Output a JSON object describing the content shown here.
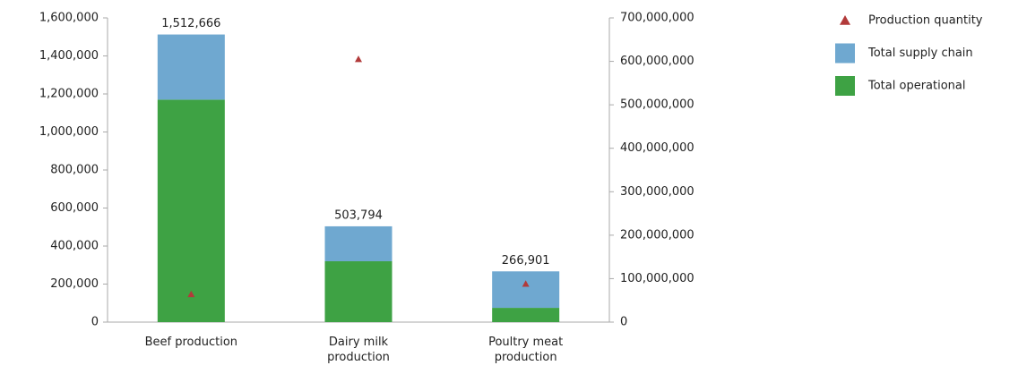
{
  "chart_data": {
    "type": "bar",
    "categories": [
      "Beef production",
      "Dairy milk production",
      "Poultry meat production"
    ],
    "series": [
      {
        "name": "Production quantity",
        "type": "scatter",
        "axis": "y2",
        "color": "#b23a3a",
        "values": [
          64000000,
          605000000,
          88000000
        ]
      },
      {
        "name": "Total supply chain",
        "color": "#6fa8d0",
        "values": [
          342666,
          183794,
          191901
        ]
      },
      {
        "name": "Total operational",
        "color": "#3ea244",
        "values": [
          1170000,
          320000,
          75000
        ]
      }
    ],
    "totals": [
      1512666,
      503794,
      266901
    ],
    "totals_labels": [
      "1,512,666",
      "503,794",
      "266,901"
    ],
    "ylim": [
      0,
      1600000
    ],
    "yticks": [
      0,
      {
        "value": 200000,
        "label": "200,000"
      },
      {
        "value": 400000,
        "label": "400,000"
      },
      {
        "value": 600000,
        "label": "600,000"
      },
      {
        "value": 800000,
        "label": "800,000"
      },
      {
        "value": 1000000,
        "label": "1,000,000"
      },
      {
        "value": 1200000,
        "label": "1,200,000"
      },
      {
        "value": 1400000,
        "label": "1,400,000"
      },
      {
        "value": 1600000,
        "label": "1,600,000"
      }
    ],
    "y2lim": [
      0,
      700000000
    ],
    "y2ticks": [
      0,
      {
        "value": 100000000,
        "label": "100,000,000"
      },
      {
        "value": 200000000,
        "label": "200,000,000"
      },
      {
        "value": 300000000,
        "label": "300,000,000"
      },
      {
        "value": 400000000,
        "label": "400,000,000"
      },
      {
        "value": 500000000,
        "label": "500,000,000"
      },
      {
        "value": 600000000,
        "label": "600,000,000"
      },
      {
        "value": 700000000,
        "label": "700,000,000"
      }
    ],
    "legend": "top-right"
  }
}
